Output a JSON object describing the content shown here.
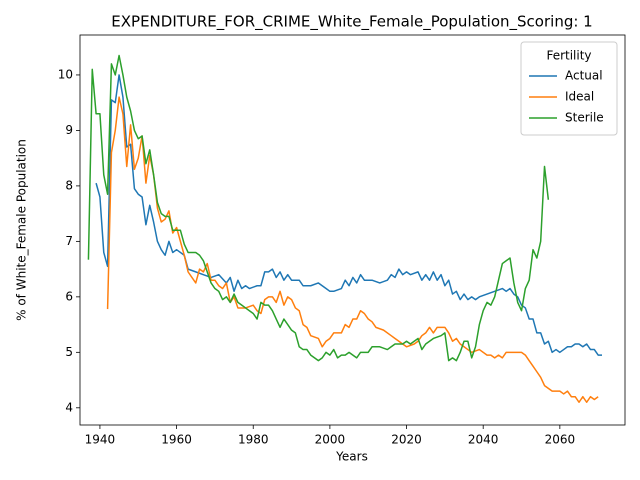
{
  "chart_data": {
    "type": "line",
    "title": "EXPENDITURE_FOR_CRIME_White_Female_Population_Scoring: 1",
    "xlabel": "Years",
    "ylabel": "% of White_Female Population",
    "xlim": [
      1934.8,
      2077
    ],
    "ylim": [
      3.69,
      10.72
    ],
    "xticks": [
      1940,
      1960,
      1980,
      2000,
      2020,
      2040,
      2060
    ],
    "yticks": [
      4,
      5,
      6,
      7,
      8,
      9,
      10
    ],
    "legend": {
      "title": "Fertility",
      "position": "upper right"
    },
    "series": [
      {
        "name": "Actual",
        "color": "#1f77b4",
        "x": [
          1939,
          1940,
          1941,
          1942,
          1943,
          1944,
          1945,
          1946,
          1947,
          1948,
          1949,
          1950,
          1951,
          1952,
          1953,
          1954,
          1955,
          1956,
          1957,
          1958,
          1959,
          1960,
          1962,
          1963,
          1965,
          1967,
          1969,
          1971,
          1973,
          1974,
          1975,
          1976,
          1977,
          1978,
          1979,
          1981,
          1982,
          1983,
          1984,
          1985,
          1986,
          1987,
          1988,
          1989,
          1990,
          1992,
          1993,
          1995,
          1997,
          1999,
          2000,
          2001,
          2003,
          2004,
          2005,
          2006,
          2007,
          2008,
          2009,
          2011,
          2013,
          2015,
          2016,
          2017,
          2018,
          2019,
          2020,
          2021,
          2023,
          2024,
          2025,
          2026,
          2027,
          2028,
          2029,
          2030,
          2031,
          2032,
          2033,
          2034,
          2035,
          2036,
          2037,
          2038,
          2039,
          2041,
          2043,
          2045,
          2046,
          2047,
          2048,
          2049,
          2050,
          2051,
          2052,
          2053,
          2054,
          2055,
          2056,
          2057,
          2058,
          2059,
          2060,
          2061,
          2062,
          2063,
          2064,
          2065,
          2066,
          2067,
          2068,
          2069,
          2070,
          2071
        ],
        "values": [
          8.05,
          7.8,
          6.8,
          6.55,
          9.55,
          9.5,
          10.0,
          9.6,
          8.7,
          8.75,
          7.95,
          7.85,
          7.8,
          7.3,
          7.65,
          7.35,
          7.0,
          6.85,
          6.75,
          7.0,
          6.8,
          6.85,
          6.75,
          6.5,
          6.45,
          6.4,
          6.35,
          6.4,
          6.25,
          6.35,
          6.1,
          6.3,
          6.15,
          6.2,
          6.15,
          6.2,
          6.2,
          6.45,
          6.45,
          6.5,
          6.35,
          6.45,
          6.3,
          6.4,
          6.3,
          6.3,
          6.2,
          6.2,
          6.25,
          6.15,
          6.1,
          6.1,
          6.15,
          6.3,
          6.2,
          6.35,
          6.25,
          6.4,
          6.3,
          6.3,
          6.25,
          6.3,
          6.4,
          6.35,
          6.5,
          6.4,
          6.45,
          6.4,
          6.45,
          6.3,
          6.4,
          6.3,
          6.45,
          6.3,
          6.4,
          6.2,
          6.3,
          6.05,
          6.1,
          5.95,
          6.05,
          5.95,
          6.0,
          5.95,
          6.0,
          6.05,
          6.1,
          6.15,
          6.1,
          6.15,
          6.05,
          6.0,
          5.85,
          5.8,
          5.6,
          5.6,
          5.35,
          5.35,
          5.15,
          5.2,
          5.0,
          5.05,
          5.0,
          5.05,
          5.1,
          5.1,
          5.15,
          5.15,
          5.1,
          5.15,
          5.05,
          5.05,
          4.95,
          4.95
        ]
      },
      {
        "name": "Ideal",
        "color": "#ff7f0e",
        "x": [
          1942,
          1943,
          1944,
          1945,
          1946,
          1947,
          1948,
          1949,
          1950,
          1951,
          1952,
          1953,
          1954,
          1955,
          1956,
          1957,
          1958,
          1959,
          1960,
          1961,
          1962,
          1963,
          1964,
          1965,
          1966,
          1967,
          1968,
          1969,
          1970,
          1971,
          1972,
          1973,
          1974,
          1975,
          1976,
          1978,
          1980,
          1981,
          1982,
          1983,
          1984,
          1985,
          1986,
          1987,
          1988,
          1989,
          1990,
          1991,
          1992,
          1993,
          1994,
          1995,
          1997,
          1998,
          1999,
          2000,
          2001,
          2003,
          2004,
          2005,
          2006,
          2007,
          2008,
          2009,
          2010,
          2011,
          2012,
          2014,
          2016,
          2017,
          2018,
          2020,
          2022,
          2023,
          2024,
          2025,
          2026,
          2027,
          2028,
          2030,
          2031,
          2032,
          2033,
          2034,
          2035,
          2036,
          2037,
          2039,
          2041,
          2042,
          2043,
          2044,
          2045,
          2046,
          2047,
          2049,
          2050,
          2051,
          2052,
          2053,
          2054,
          2055,
          2056,
          2057,
          2058,
          2059,
          2060,
          2061,
          2062,
          2063,
          2064,
          2065,
          2066,
          2067,
          2068,
          2069,
          2070
        ],
        "values": [
          5.78,
          8.6,
          9.0,
          9.6,
          9.3,
          8.35,
          9.1,
          8.3,
          8.5,
          8.9,
          8.05,
          8.55,
          8.2,
          7.6,
          7.35,
          7.4,
          7.55,
          7.15,
          7.25,
          7.0,
          6.75,
          6.45,
          6.35,
          6.25,
          6.5,
          6.45,
          6.6,
          6.3,
          6.3,
          6.2,
          6.15,
          6.25,
          5.9,
          6.0,
          5.8,
          5.8,
          5.85,
          5.75,
          5.7,
          5.95,
          6.0,
          6.0,
          5.9,
          6.1,
          5.85,
          6.0,
          5.95,
          5.8,
          5.75,
          5.5,
          5.45,
          5.3,
          5.25,
          5.1,
          5.2,
          5.25,
          5.35,
          5.35,
          5.5,
          5.45,
          5.6,
          5.6,
          5.75,
          5.7,
          5.6,
          5.55,
          5.45,
          5.4,
          5.3,
          5.25,
          5.2,
          5.1,
          5.15,
          5.2,
          5.3,
          5.35,
          5.45,
          5.35,
          5.45,
          5.45,
          5.35,
          5.2,
          5.25,
          5.15,
          5.1,
          5.05,
          5.0,
          5.05,
          4.95,
          4.95,
          4.9,
          4.95,
          4.9,
          5.0,
          5.0,
          5.0,
          5.0,
          4.95,
          4.85,
          4.75,
          4.65,
          4.55,
          4.4,
          4.35,
          4.3,
          4.3,
          4.3,
          4.25,
          4.3,
          4.2,
          4.2,
          4.1,
          4.2,
          4.1,
          4.2,
          4.15,
          4.2
        ]
      },
      {
        "name": "Sterile",
        "color": "#2ca02c",
        "x": [
          1937,
          1938,
          1939,
          1940,
          1941,
          1942,
          1943,
          1944,
          1945,
          1946,
          1947,
          1948,
          1949,
          1950,
          1951,
          1952,
          1953,
          1954,
          1955,
          1956,
          1957,
          1958,
          1959,
          1960,
          1961,
          1962,
          1963,
          1965,
          1966,
          1967,
          1968,
          1969,
          1970,
          1971,
          1972,
          1973,
          1974,
          1975,
          1976,
          1977,
          1978,
          1979,
          1980,
          1981,
          1982,
          1983,
          1984,
          1985,
          1986,
          1987,
          1988,
          1989,
          1990,
          1991,
          1992,
          1993,
          1994,
          1995,
          1996,
          1997,
          1998,
          1999,
          2000,
          2001,
          2002,
          2003,
          2004,
          2005,
          2006,
          2007,
          2008,
          2009,
          2010,
          2011,
          2013,
          2015,
          2016,
          2017,
          2019,
          2020,
          2021,
          2022,
          2023,
          2024,
          2025,
          2026,
          2027,
          2029,
          2030,
          2031,
          2032,
          2033,
          2034,
          2035,
          2036,
          2037,
          2038,
          2039,
          2040,
          2041,
          2042,
          2043,
          2044,
          2045,
          2046,
          2047,
          2048,
          2049,
          2050,
          2051,
          2052,
          2053,
          2054,
          2055,
          2056,
          2057
        ],
        "values": [
          6.67,
          10.1,
          9.3,
          9.3,
          8.2,
          7.85,
          10.2,
          10.0,
          10.35,
          10.0,
          9.6,
          9.35,
          9.0,
          8.85,
          8.9,
          8.4,
          8.65,
          8.2,
          7.7,
          7.5,
          7.45,
          7.45,
          7.2,
          7.2,
          7.2,
          6.95,
          6.8,
          6.8,
          6.75,
          6.65,
          6.45,
          6.25,
          6.15,
          6.1,
          5.95,
          6.0,
          5.9,
          6.05,
          5.9,
          5.85,
          5.8,
          5.75,
          5.7,
          5.6,
          5.9,
          5.85,
          5.85,
          5.75,
          5.6,
          5.45,
          5.6,
          5.5,
          5.4,
          5.35,
          5.1,
          5.05,
          5.05,
          4.95,
          4.9,
          4.85,
          4.9,
          5.0,
          4.95,
          5.05,
          4.9,
          4.95,
          4.95,
          5.0,
          4.95,
          4.9,
          5.0,
          5.0,
          5.0,
          5.1,
          5.1,
          5.05,
          5.1,
          5.15,
          5.15,
          5.2,
          5.15,
          5.2,
          5.25,
          5.05,
          5.15,
          5.2,
          5.25,
          5.3,
          5.35,
          4.85,
          4.9,
          4.85,
          5.0,
          5.2,
          5.2,
          4.9,
          5.1,
          5.5,
          5.75,
          5.9,
          5.85,
          6.0,
          6.3,
          6.6,
          6.65,
          6.7,
          6.25,
          5.9,
          5.75,
          6.15,
          6.3,
          6.85,
          6.7,
          7.0,
          8.35,
          7.75
        ]
      }
    ]
  }
}
